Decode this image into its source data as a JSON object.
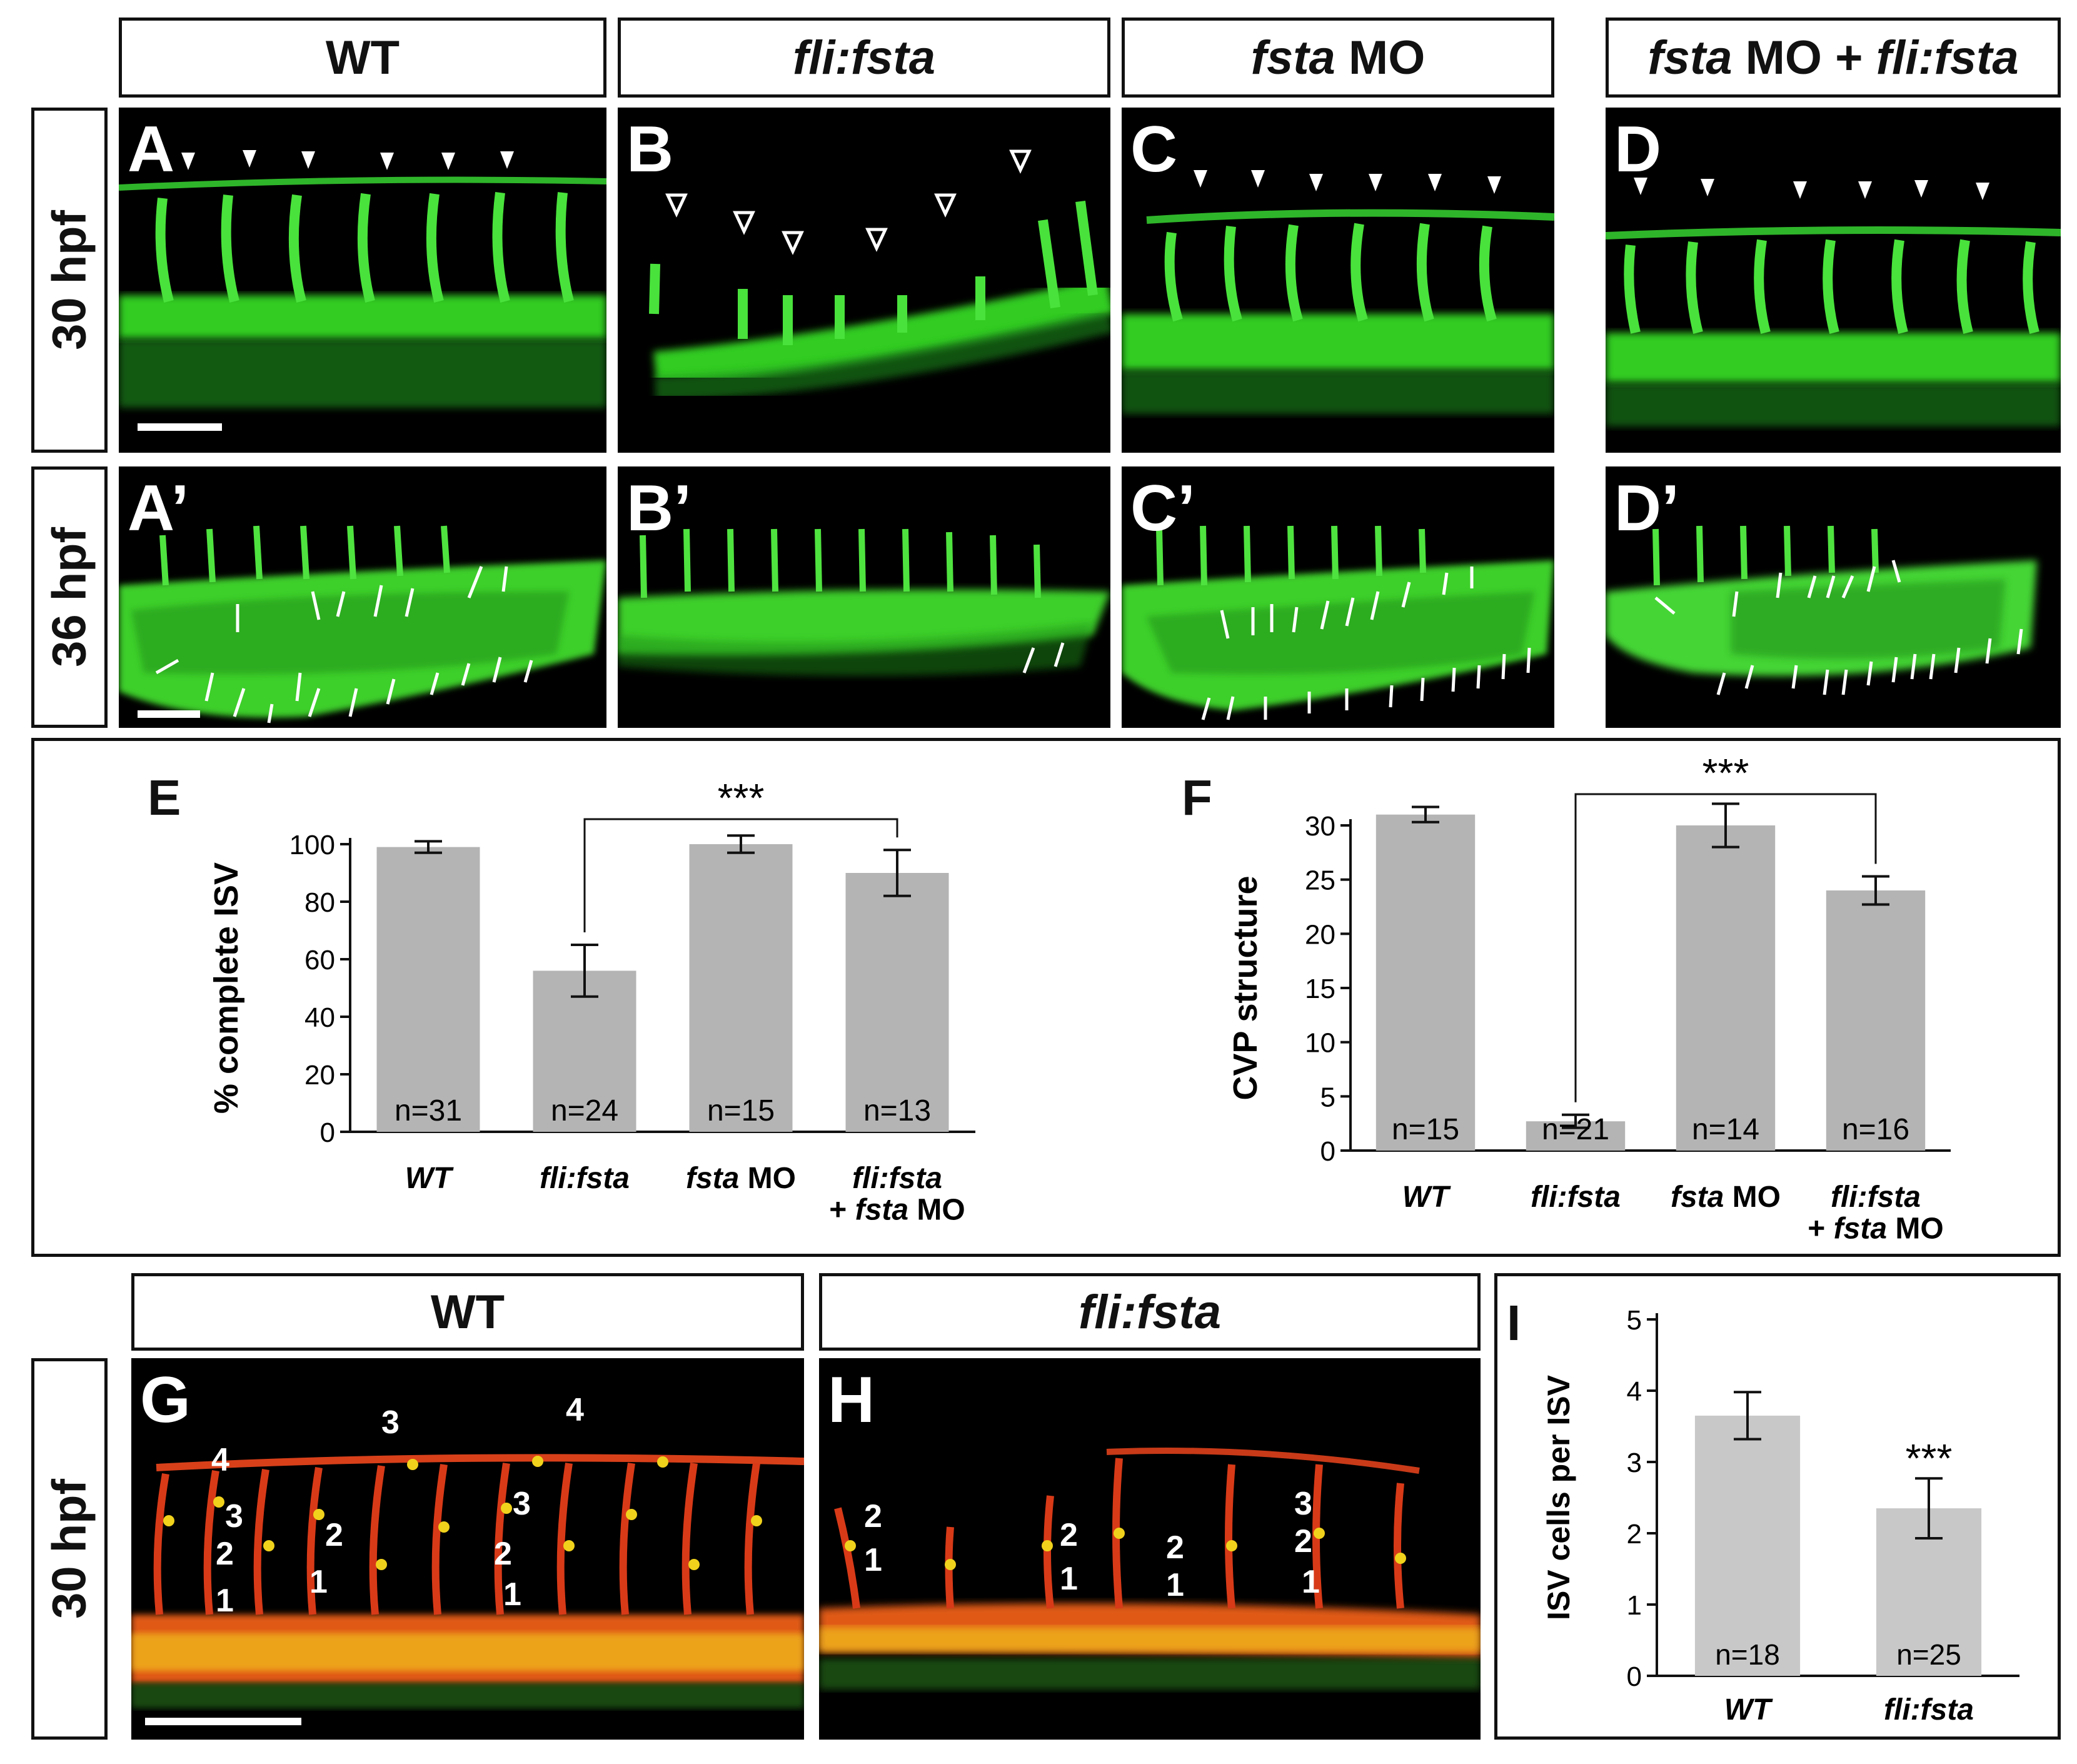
{
  "columns": {
    "wt": "WT",
    "fli": "fli:fsta",
    "mo_gene": "fsta",
    "mo_suffix": " MO",
    "combo_gene": "fsta",
    "combo_mid": " MO + ",
    "combo_fli": "fli:fsta"
  },
  "rows": {
    "r1": "30 hpf",
    "r2": "36 hpf",
    "r3": "30 hpf"
  },
  "panels": {
    "A": "A",
    "B": "B",
    "C": "C",
    "D": "D",
    "A2": "A’",
    "B2": "B’",
    "C2": "C’",
    "D2": "D’",
    "G": "G",
    "H": "H"
  },
  "bottom_columns": {
    "wt": "WT",
    "fli": "fli:fsta"
  },
  "cell_numbers": {
    "G": [
      "4",
      "3",
      "2",
      "1",
      "2",
      "1",
      "3",
      "3",
      "4",
      "2",
      "1"
    ],
    "H": [
      "2",
      "1",
      "2",
      "1",
      "2",
      "1",
      "3",
      "2",
      "1"
    ]
  },
  "chart_data": [
    {
      "panel": "E",
      "type": "bar",
      "categories": [
        "WT",
        "fli:fsta",
        "fsta MO",
        "fli:fsta + fsta MO"
      ],
      "values": [
        99,
        56,
        100,
        90
      ],
      "errors": [
        2,
        9,
        3,
        8
      ],
      "n_labels": [
        "n=31",
        "n=24",
        "n=15",
        "n=13"
      ],
      "ylabel": "% complete ISV",
      "ylim": [
        0,
        100
      ],
      "yticks": [
        "0",
        "20",
        "40",
        "60",
        "80",
        "100"
      ],
      "significance": {
        "label": "***",
        "between": [
          1,
          3
        ]
      },
      "bar_color": "#b4b4b4"
    },
    {
      "panel": "F",
      "type": "bar",
      "categories": [
        "WT",
        "fli:fsta",
        "fsta MO",
        "fli:fsta + fsta MO"
      ],
      "values": [
        31,
        2.7,
        30,
        24
      ],
      "errors": [
        0.7,
        0.6,
        2,
        1.3
      ],
      "n_labels": [
        "n=15",
        "n=21",
        "n=14",
        "n=16"
      ],
      "ylabel": "CVP structure",
      "ylim": [
        0,
        30
      ],
      "yticks": [
        "0",
        "5",
        "10",
        "15",
        "20",
        "25",
        "30"
      ],
      "significance": {
        "label": "***",
        "between": [
          1,
          3
        ]
      },
      "bar_color": "#b4b4b4"
    },
    {
      "panel": "I",
      "type": "bar",
      "categories": [
        "WT",
        "fli:fsta"
      ],
      "values": [
        3.65,
        2.35
      ],
      "errors": [
        0.33,
        0.42
      ],
      "n_labels": [
        "n=18",
        "n=25"
      ],
      "ylabel": "ISV cells per ISV",
      "ylim": [
        0,
        5
      ],
      "yticks": [
        "0",
        "1",
        "2",
        "3",
        "4",
        "5"
      ],
      "significance": {
        "label": "***",
        "on": 1
      },
      "bar_color": "#c8c8c8"
    }
  ]
}
